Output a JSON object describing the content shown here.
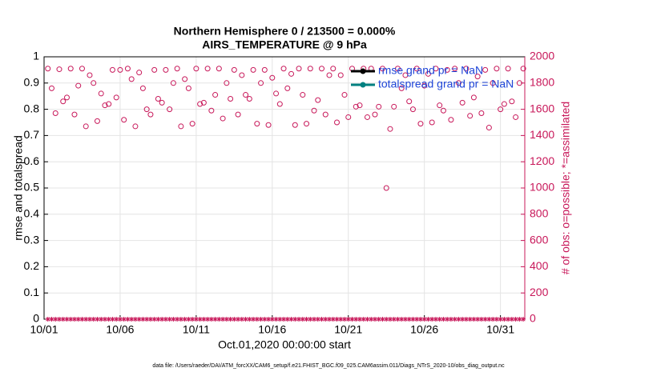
{
  "chart_data": {
    "type": "scatter",
    "title": "Northern Hemisphere 0 / 213500 = 0.000%",
    "subtitle": "AIRS_TEMPERATURE @ 9 hPa",
    "xlabel": "Oct.01,2020 00:00:00 start",
    "ylabel": "rmse and totalspread",
    "y2label": "# of obs: o=possible; *=assimilated",
    "footer": "data file: /Users/raeder/DAI/ATM_forcXX/CAM6_setup/f.e21.FHIST_BGC.f09_025.CAM6assim.011/Diags_NTrS_2020-10/obs_diag_output.nc",
    "grid": true,
    "legend": "top-right",
    "y2color": "#c8185a",
    "xlim": [
      0,
      31.6
    ],
    "xticks": [
      {
        "value": 0,
        "label": "10/01"
      },
      {
        "value": 5,
        "label": "10/06"
      },
      {
        "value": 10,
        "label": "10/11"
      },
      {
        "value": 15,
        "label": "10/16"
      },
      {
        "value": 20,
        "label": "10/21"
      },
      {
        "value": 25,
        "label": "10/26"
      },
      {
        "value": 30,
        "label": "10/31"
      }
    ],
    "ylim": [
      0,
      1
    ],
    "yticks": [
      0,
      0.1,
      0.2,
      0.3,
      0.4,
      0.5,
      0.6,
      0.7,
      0.8,
      0.9,
      1
    ],
    "y2lim": [
      0,
      2000
    ],
    "y2ticks": [
      0,
      200,
      400,
      600,
      800,
      1000,
      1200,
      1400,
      1600,
      1800,
      2000
    ],
    "x": [
      0.25,
      0.5,
      0.75,
      1,
      1.25,
      1.5,
      1.75,
      2,
      2.25,
      2.5,
      2.75,
      3,
      3.25,
      3.5,
      3.75,
      4,
      4.25,
      4.5,
      4.75,
      5,
      5.25,
      5.5,
      5.75,
      6,
      6.25,
      6.5,
      6.75,
      7,
      7.25,
      7.5,
      7.75,
      8,
      8.25,
      8.5,
      8.75,
      9,
      9.25,
      9.5,
      9.75,
      10,
      10.25,
      10.5,
      10.75,
      11,
      11.25,
      11.5,
      11.75,
      12,
      12.25,
      12.5,
      12.75,
      13,
      13.25,
      13.5,
      13.75,
      14,
      14.25,
      14.5,
      14.75,
      15,
      15.25,
      15.5,
      15.75,
      16,
      16.25,
      16.5,
      16.75,
      17,
      17.25,
      17.5,
      17.75,
      18,
      18.25,
      18.5,
      18.75,
      19,
      19.25,
      19.5,
      19.75,
      20,
      20.25,
      20.5,
      20.75,
      21,
      21.25,
      21.5,
      21.75,
      22,
      22.25,
      22.5,
      22.75,
      23,
      23.25,
      23.5,
      23.75,
      24,
      24.25,
      24.5,
      24.75,
      25,
      25.25,
      25.5,
      25.75,
      26,
      26.25,
      26.5,
      26.75,
      27,
      27.25,
      27.5,
      27.75,
      28,
      28.25,
      28.5,
      28.75,
      29,
      29.25,
      29.5,
      29.75,
      30,
      30.25,
      30.5,
      30.75,
      31,
      31.25,
      31.5
    ],
    "series": [
      {
        "name": "rmse grand pr = NaN",
        "color": "#000000"
      },
      {
        "name": "totalspread grand pr = NaN",
        "color": "#008080"
      },
      {
        "color": "#c8185a",
        "marker": "o",
        "axis": "y2",
        "values": [
          1910,
          1760,
          1570,
          1905,
          1660,
          1690,
          1910,
          1560,
          1780,
          1910,
          1470,
          1860,
          1800,
          1510,
          1720,
          1630,
          1640,
          1900,
          1690,
          1900,
          1520,
          1910,
          1830,
          1470,
          1880,
          1760,
          1600,
          1560,
          1900,
          1680,
          1650,
          1900,
          1600,
          1800,
          1910,
          1470,
          1830,
          1760,
          1490,
          1910,
          1640,
          1650,
          1910,
          1590,
          1710,
          1910,
          1530,
          1800,
          1680,
          1900,
          1560,
          1860,
          1710,
          1680,
          1900,
          1490,
          1800,
          1900,
          1480,
          1840,
          1720,
          1640,
          1910,
          1760,
          1870,
          1480,
          1910,
          1710,
          1490,
          1910,
          1590,
          1670,
          1910,
          1560,
          1860,
          1910,
          1500,
          1860,
          1710,
          1540,
          1910,
          1620,
          1630,
          1910,
          1540,
          1910,
          1560,
          1620,
          1910,
          1000,
          1450,
          1620,
          1910,
          1760,
          1860,
          1660,
          1600,
          1910,
          1490,
          1780,
          1870,
          1500,
          1910,
          1630,
          1590,
          1900,
          1520,
          1910,
          1800,
          1650,
          1910,
          1550,
          1690,
          1850,
          1570,
          1900,
          1460,
          1800,
          1910,
          1600,
          1640,
          1910,
          1660,
          1540,
          1800,
          1910
        ]
      },
      {
        "color": "#c8185a",
        "marker": "*",
        "axis": "y2",
        "values": [
          0,
          0,
          0,
          0,
          0,
          0,
          0,
          0,
          0,
          0,
          0,
          0,
          0,
          0,
          0,
          0,
          0,
          0,
          0,
          0,
          0,
          0,
          0,
          0,
          0,
          0,
          0,
          0,
          0,
          0,
          0,
          0,
          0,
          0,
          0,
          0,
          0,
          0,
          0,
          0,
          0,
          0,
          0,
          0,
          0,
          0,
          0,
          0,
          0,
          0,
          0,
          0,
          0,
          0,
          0,
          0,
          0,
          0,
          0,
          0,
          0,
          0,
          0,
          0,
          0,
          0,
          0,
          0,
          0,
          0,
          0,
          0,
          0,
          0,
          0,
          0,
          0,
          0,
          0,
          0,
          0,
          0,
          0,
          0,
          0,
          0,
          0,
          0,
          0,
          0,
          0,
          0,
          0,
          0,
          0,
          0,
          0,
          0,
          0,
          0,
          0,
          0,
          0,
          0,
          0,
          0,
          0,
          0,
          0,
          0,
          0,
          0,
          0,
          0,
          0,
          0,
          0,
          0,
          0,
          0,
          0,
          0,
          0,
          0,
          0,
          0
        ]
      }
    ]
  }
}
